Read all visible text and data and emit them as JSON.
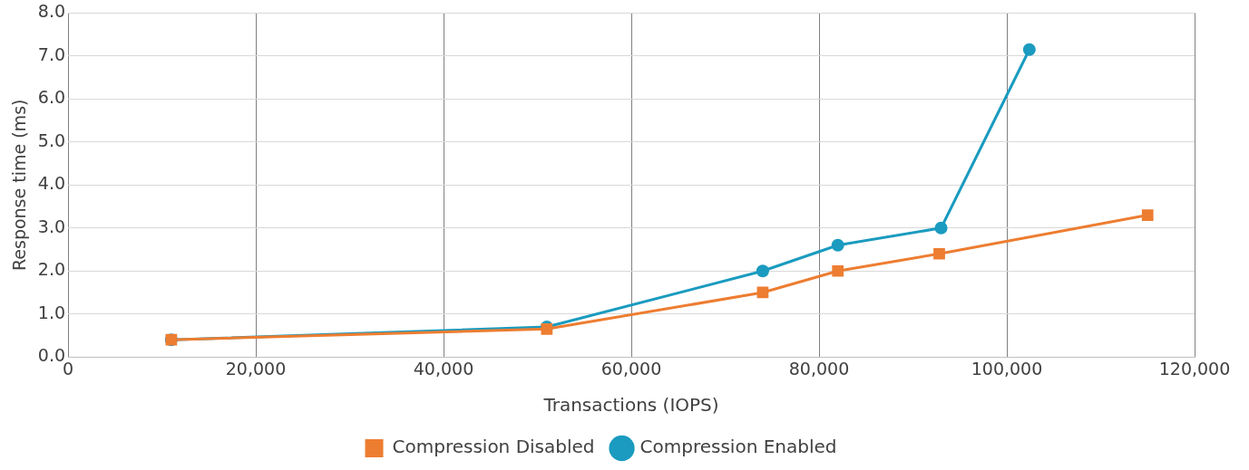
{
  "chart_data": {
    "type": "line",
    "xlabel": "Transactions (IOPS)",
    "ylabel": "Response time (ms)",
    "xlim": [
      0,
      120000
    ],
    "xticks": [
      0,
      {
        "value": 20000,
        "label": "20,000"
      },
      {
        "value": 40000,
        "label": "40,000"
      },
      {
        "value": 60000,
        "label": "60,000"
      },
      {
        "value": 80000,
        "label": "80,000"
      },
      {
        "value": 100000,
        "label": "100,000"
      },
      {
        "value": 120000,
        "label": "120,000"
      }
    ],
    "ylim": [
      0,
      8
    ],
    "yticks": [
      {
        "value": 0,
        "label": "0.0"
      },
      {
        "value": 1,
        "label": "1.0"
      },
      {
        "value": 2,
        "label": "2.0"
      },
      {
        "value": 3,
        "label": "3.0"
      },
      {
        "value": 4,
        "label": "4.0"
      },
      {
        "value": 5,
        "label": "5.0"
      },
      {
        "value": 6,
        "label": "6.0"
      },
      {
        "value": 7,
        "label": "7.0"
      },
      {
        "value": 8,
        "label": "8.0"
      }
    ],
    "grid": true,
    "legend": "bottom",
    "series": [
      {
        "name": "Compression Enabled",
        "color": "#1a9bbf",
        "marker": "circle",
        "x": [
          11000,
          51000,
          74000,
          82000,
          93000,
          102400
        ],
        "values": [
          0.4,
          0.7,
          2.0,
          2.6,
          3.0,
          7.15
        ]
      },
      {
        "name": "Compression Disabled",
        "color": "#ed7d31",
        "marker": "square",
        "x": [
          11000,
          51000,
          74000,
          82000,
          92800,
          115000
        ],
        "values": [
          0.4,
          0.65,
          1.5,
          2.0,
          2.4,
          3.3
        ]
      }
    ]
  }
}
